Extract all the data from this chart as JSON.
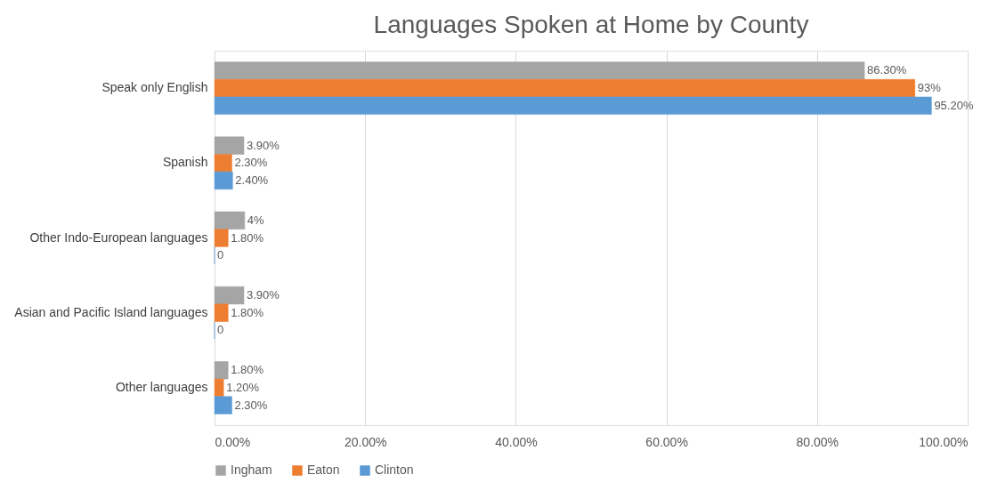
{
  "chart_data": {
    "type": "bar",
    "orientation": "horizontal",
    "title": "Languages Spoken at Home by County",
    "categories": [
      "Speak only English",
      "Spanish",
      "Other Indo-European languages",
      "Asian and Pacific Island languages",
      "Other languages"
    ],
    "series": [
      {
        "name": "Ingham",
        "color": "#a5a5a5",
        "values": [
          86.3,
          3.9,
          4,
          3.9,
          1.8
        ],
        "value_labels": [
          "86.30%",
          "3.90%",
          "4%",
          "3.90%",
          "1.80%"
        ]
      },
      {
        "name": "Eaton",
        "color": "#ed7d31",
        "values": [
          93,
          2.3,
          1.8,
          1.8,
          1.2
        ],
        "value_labels": [
          "93%",
          "2.30%",
          "1.80%",
          "1.80%",
          "1.20%"
        ]
      },
      {
        "name": "Clinton",
        "color": "#5b9bd5",
        "values": [
          95.2,
          2.4,
          0,
          0,
          2.3
        ],
        "value_labels": [
          "95.20%",
          "2.40%",
          "0",
          "0",
          "2.30%"
        ]
      }
    ],
    "xlim": [
      0,
      100
    ],
    "xticks": [
      {
        "value": 0,
        "label": "0.00%"
      },
      {
        "value": 20,
        "label": "20.00%"
      },
      {
        "value": 40,
        "label": "40.00%"
      },
      {
        "value": 60,
        "label": "60.00%"
      },
      {
        "value": 80,
        "label": "80.00%"
      },
      {
        "value": 100,
        "label": "100.00%"
      }
    ],
    "grid": "x",
    "legend": "bottom"
  }
}
